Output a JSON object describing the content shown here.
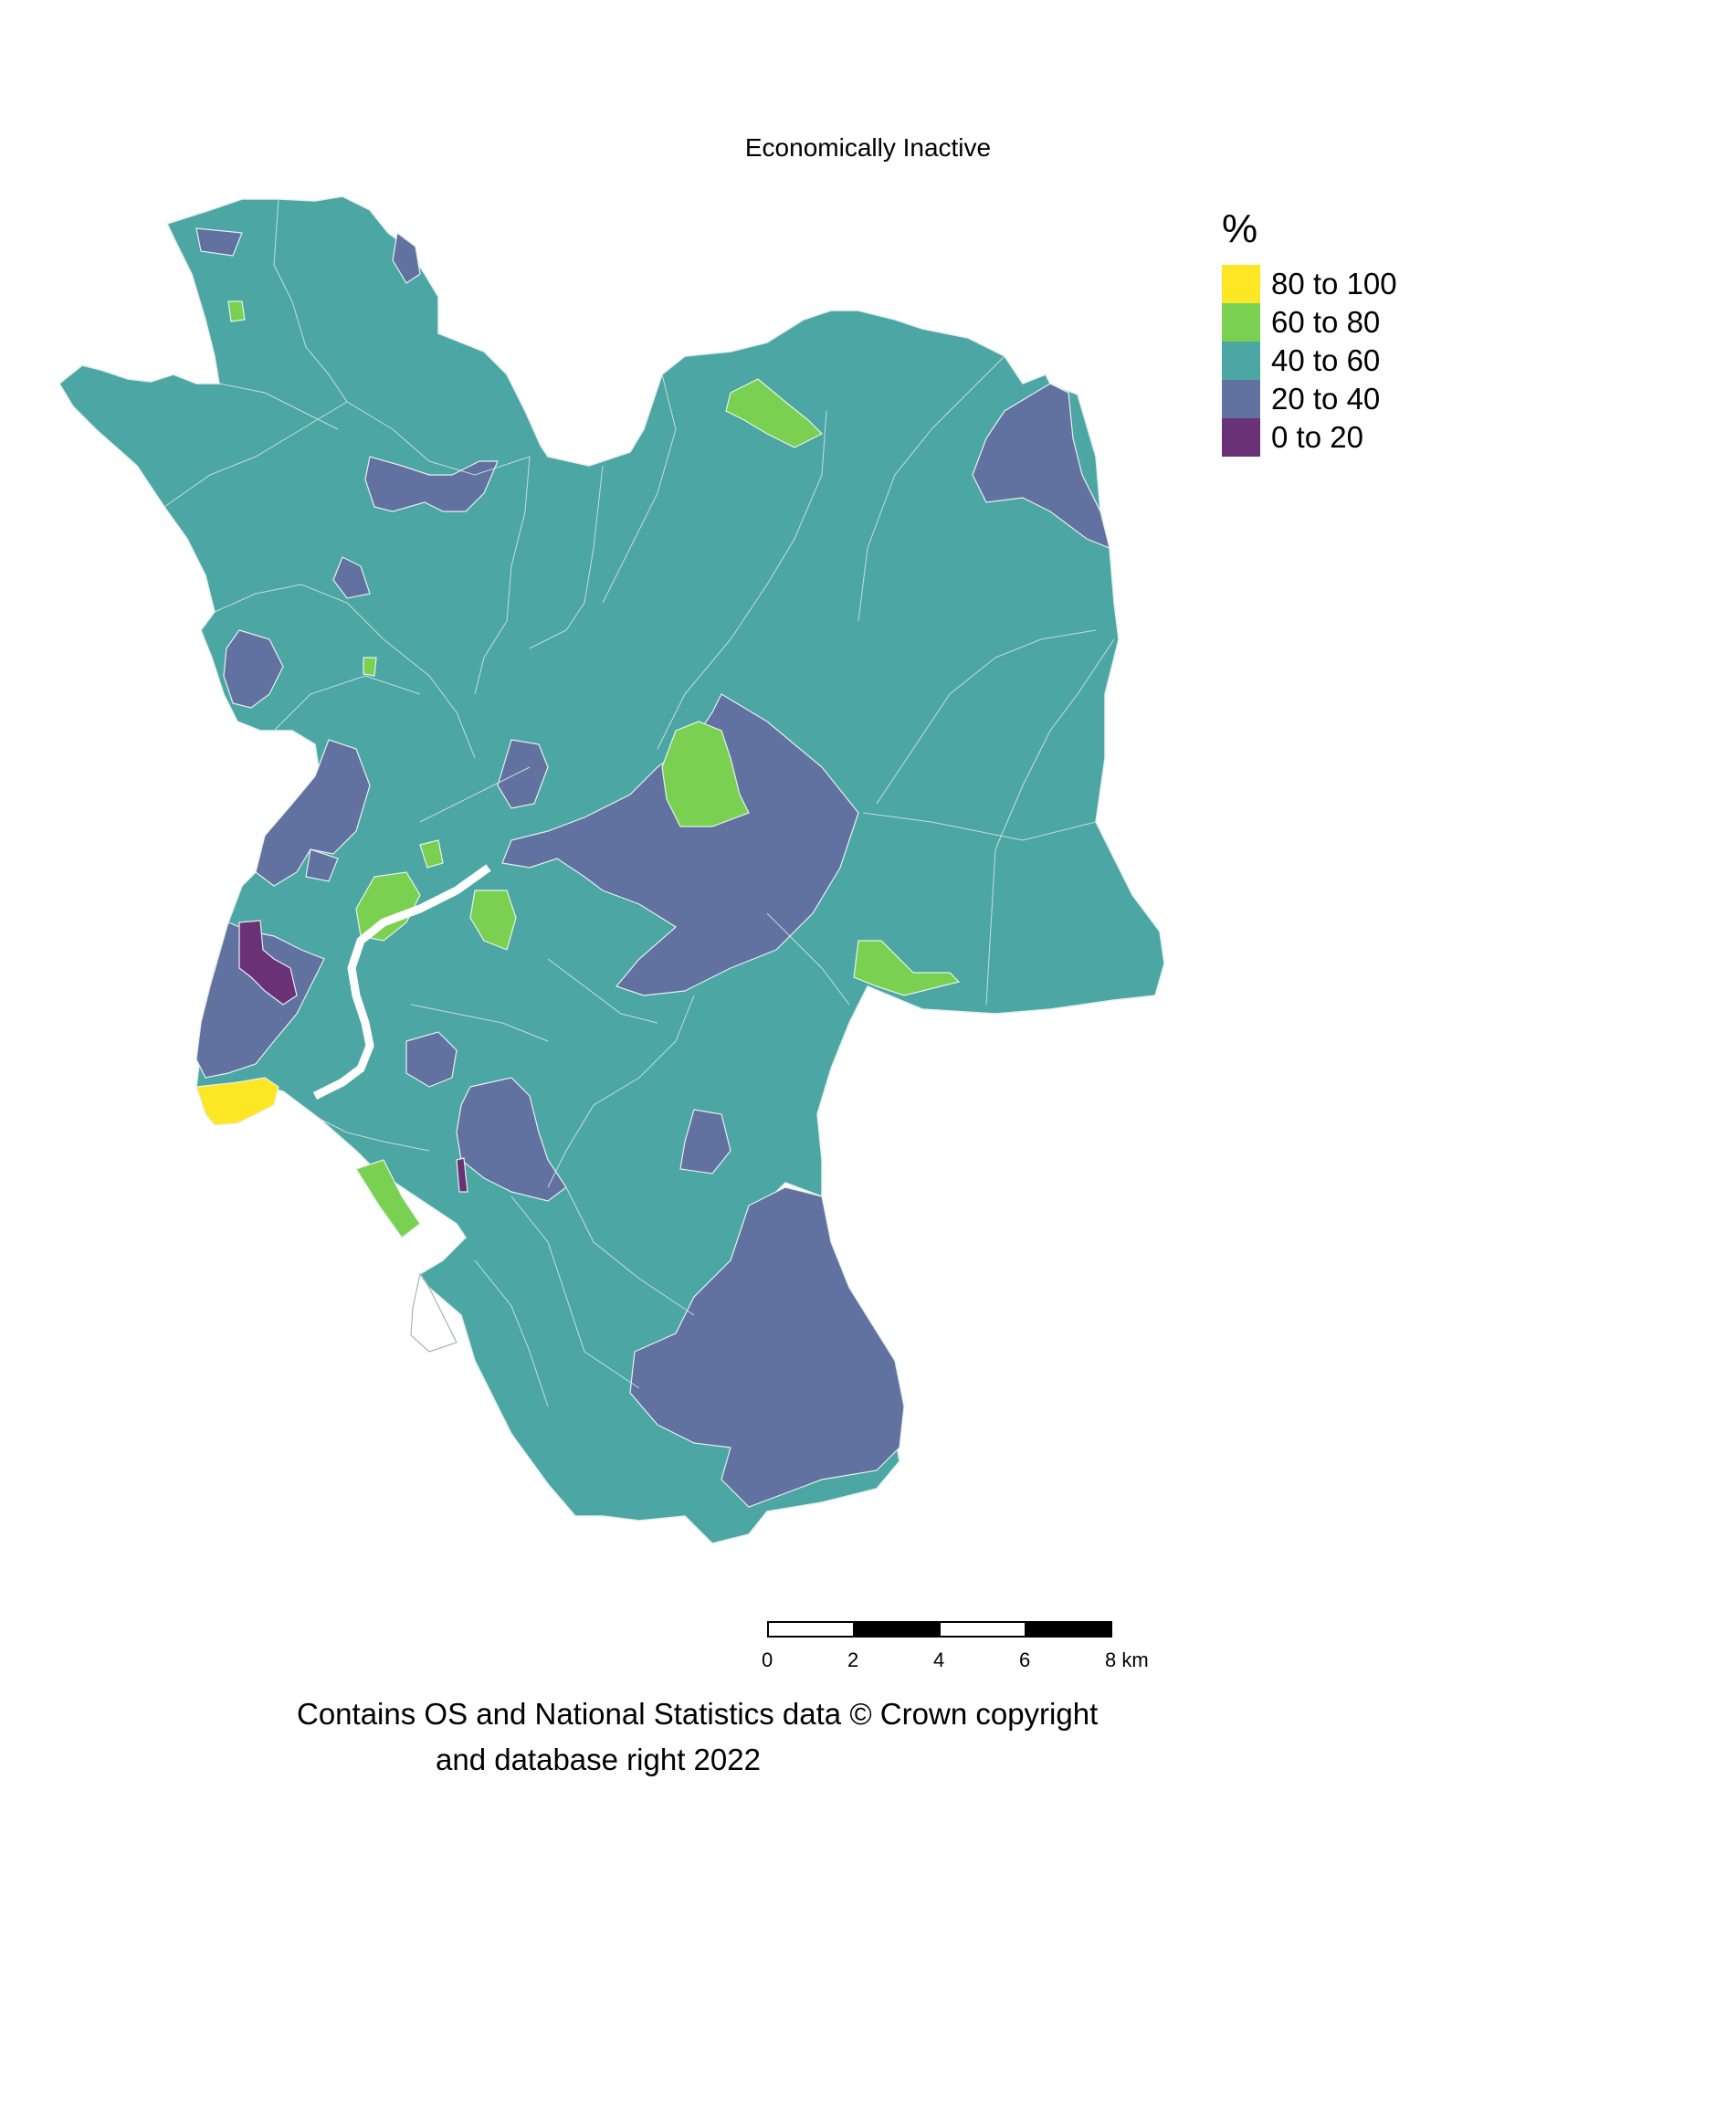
{
  "title": "Economically Inactive",
  "legend": {
    "title": "%",
    "items": [
      {
        "label": "80 to 100",
        "color": "#fde725"
      },
      {
        "label": "60 to 80",
        "color": "#7ad151"
      },
      {
        "label": "40 to 60",
        "color": "#4ca6a3"
      },
      {
        "label": "20 to 40",
        "color": "#6272a0"
      },
      {
        "label": "0 to 20",
        "color": "#6a3177"
      }
    ]
  },
  "scalebar": {
    "ticks": [
      "0",
      "2",
      "4",
      "6",
      "8 km"
    ]
  },
  "attribution": {
    "line1": "Contains OS and National Statistics data © Crown copyright",
    "line2": "and database right 2022"
  },
  "colors": {
    "band_80_100": "#fde725",
    "band_60_80": "#7ad151",
    "band_40_60": "#4ca6a3",
    "band_20_40": "#6272a0",
    "band_0_20": "#6a3177",
    "boundary": "#cfe3e2"
  }
}
